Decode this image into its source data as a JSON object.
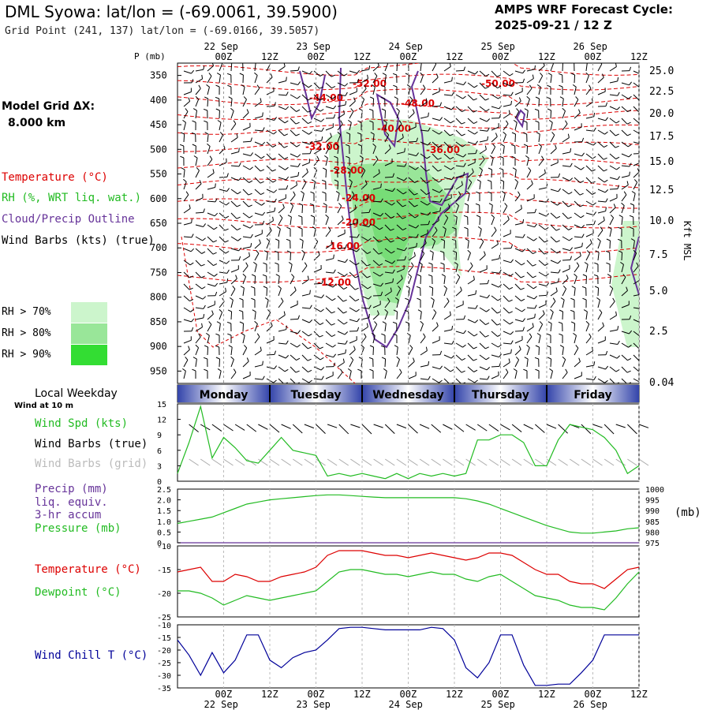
{
  "header": {
    "title": "DML Syowa:  lat/lon = (-69.0061, 39.5900)",
    "grid_point": "Grid Point (241, 137) lat/lon = (-69.0166, 39.5057)",
    "cycle_line1": "AMPS WRF Forecast Cycle:",
    "cycle_line2": "2025-09-21 / 12  Z",
    "model_grid_line1": "Model Grid ΔX:",
    "model_grid_line2": "8.000 km"
  },
  "legend": {
    "temperature": "Temperature (°C)",
    "rh": "RH (%, WRT liq. wat.)",
    "cloud": "Cloud/Precip Outline",
    "wind_barbs": "Wind Barbs (kts) (true)",
    "rh70": "RH > 70%",
    "rh80": "RH > 80%",
    "rh90": "RH > 90%",
    "colors": {
      "rh70": "#ccf5cc",
      "rh80": "#99e699",
      "rh90": "#33dd33",
      "temp": "#dd0000",
      "cloud": "#663399"
    }
  },
  "axes": {
    "time_ticks": [
      "00Z",
      "12Z",
      "00Z",
      "12Z",
      "00Z",
      "12Z",
      "00Z",
      "12Z",
      "00Z",
      "12Z"
    ],
    "date_labels": [
      "22 Sep",
      "23 Sep",
      "24 Sep",
      "25 Sep",
      "26 Sep"
    ],
    "pressure_title": "P (mb)",
    "pressure_ticks": [
      350,
      400,
      450,
      500,
      550,
      600,
      650,
      700,
      750,
      800,
      850,
      900,
      950
    ],
    "kft_ticks": [
      "25.0",
      "22.5",
      "20.0",
      "17.5",
      "15.0",
      "12.5",
      "10.0",
      "7.5",
      "5.0",
      "2.5",
      "0.04"
    ],
    "kft_title": "Kft MSL"
  },
  "weekday_bar": {
    "title": "Local Weekday",
    "subtitle": "Wind at 10 m",
    "days": [
      "Monday",
      "Tuesday",
      "Wednesday",
      "Thursday",
      "Friday"
    ]
  },
  "chart_data": [
    {
      "type": "heatmap",
      "title": "",
      "x_time_labels": [
        "22 Sep 00Z",
        "22 Sep 12Z",
        "23 Sep 00Z",
        "23 Sep 12Z",
        "24 Sep 00Z",
        "24 Sep 12Z",
        "25 Sep 00Z",
        "25 Sep 12Z",
        "26 Sep 00Z",
        "26 Sep 12Z"
      ],
      "ylabel": "P (mb)",
      "ylim": [
        975,
        325
      ],
      "temperature_contour_labels": [
        "-52.00",
        "-50.00",
        "-48.00",
        "-44.00",
        "-40.00",
        "-36.00",
        "-32.00",
        "-28.00",
        "-24.00",
        "-20.00",
        "-16.00",
        "-12.00"
      ]
    },
    {
      "type": "line",
      "panel": "wind",
      "labels": {
        "speed": "Wind Spd (kts)",
        "barbs_true": "Wind Barbs (true)",
        "barbs_grid": "Wind Barbs (grid)"
      },
      "yticks": [
        "15",
        "12",
        "9",
        "6",
        "3",
        "0"
      ],
      "ylim": [
        0,
        15
      ],
      "x_hours": [
        -12,
        -9,
        -6,
        -3,
        0,
        3,
        6,
        9,
        12,
        15,
        18,
        21,
        24,
        27,
        30,
        33,
        36,
        39,
        42,
        45,
        48,
        51,
        54,
        57,
        60,
        63,
        66,
        69,
        72,
        75,
        78,
        81,
        84,
        87,
        90,
        93,
        96,
        99,
        102,
        105,
        108
      ],
      "series": [
        {
          "name": "Wind Spd (kts)",
          "color": "#22bb22",
          "values": [
            1.5,
            7.5,
            14.5,
            4.5,
            8.5,
            6.5,
            4,
            3.5,
            6,
            8.5,
            6,
            5.5,
            5,
            1,
            1.5,
            1,
            1.5,
            1,
            0.5,
            1.5,
            0.5,
            1.5,
            1,
            1.5,
            1,
            1.5,
            8,
            8,
            9,
            9,
            7.5,
            3,
            3,
            8,
            11,
            10.5,
            10,
            8.5,
            6,
            1.5,
            3
          ]
        }
      ]
    },
    {
      "type": "line",
      "panel": "precip-pressure",
      "labels": {
        "precip": "Precip (mm)",
        "precip2": "liq. equiv.",
        "precip3": "3-hr accum",
        "pressure": "Pressure (mb)"
      },
      "yticks_left": [
        "2.5",
        "2.0",
        "1.5",
        "1.0",
        "0.5",
        "0"
      ],
      "yticks_right": [
        "1000",
        "995",
        "990",
        "985",
        "980",
        "975"
      ],
      "units_right": "(mb)",
      "ylim_left": [
        0,
        2.5
      ],
      "ylim_right": [
        975,
        1000
      ],
      "x_hours": [
        -12,
        -9,
        -6,
        -3,
        0,
        3,
        6,
        9,
        12,
        15,
        18,
        21,
        24,
        27,
        30,
        33,
        36,
        39,
        42,
        45,
        48,
        51,
        54,
        57,
        60,
        63,
        66,
        69,
        72,
        75,
        78,
        81,
        84,
        87,
        90,
        93,
        96,
        99,
        102,
        105,
        108
      ],
      "series": [
        {
          "name": "Pressure (mb)",
          "color": "#22bb22",
          "values": [
            984,
            985,
            986,
            987,
            989,
            991,
            993,
            994,
            995,
            995.5,
            996,
            996.5,
            997,
            997.3,
            997.3,
            997,
            996.6,
            996.3,
            996,
            996,
            996,
            996,
            996,
            996,
            996,
            995.5,
            994.5,
            993,
            991,
            989,
            987,
            985,
            983,
            981.5,
            980,
            979.5,
            979.5,
            980,
            980.5,
            981.5,
            982
          ]
        },
        {
          "name": "Precip (mm)",
          "color": "#663399",
          "values": [
            0,
            0,
            0,
            0,
            0,
            0,
            0,
            0,
            0,
            0,
            0,
            0,
            0,
            0,
            0,
            0,
            0,
            0,
            0,
            0,
            0,
            0,
            0,
            0,
            0,
            0,
            0,
            0,
            0,
            0,
            0,
            0,
            0,
            0,
            0,
            0,
            0,
            0,
            0,
            0,
            0
          ]
        }
      ]
    },
    {
      "type": "line",
      "panel": "temperature",
      "labels": {
        "temp": "Temperature (°C)",
        "dew": "Dewpoint (°C)"
      },
      "yticks": [
        "-10",
        "-15",
        "-20",
        "-25"
      ],
      "ylim": [
        -25,
        -10
      ],
      "x_hours": [
        -12,
        -9,
        -6,
        -3,
        0,
        3,
        6,
        9,
        12,
        15,
        18,
        21,
        24,
        27,
        30,
        33,
        36,
        39,
        42,
        45,
        48,
        51,
        54,
        57,
        60,
        63,
        66,
        69,
        72,
        75,
        78,
        81,
        84,
        87,
        90,
        93,
        96,
        99,
        102,
        105,
        108
      ],
      "series": [
        {
          "name": "Temperature (°C)",
          "color": "#dd0000",
          "values": [
            -15.5,
            -15,
            -14.5,
            -17.5,
            -17.5,
            -16,
            -16.5,
            -17.5,
            -17.5,
            -16.5,
            -16,
            -15.5,
            -14.5,
            -12,
            -11,
            -11,
            -11,
            -11.5,
            -12,
            -12,
            -12.5,
            -12,
            -11.5,
            -12,
            -12.5,
            -13,
            -12.5,
            -11.5,
            -11.5,
            -12,
            -13.5,
            -15,
            -16,
            -16,
            -17.5,
            -18,
            -18,
            -19,
            -17,
            -15,
            -14.5
          ]
        },
        {
          "name": "Dewpoint (°C)",
          "color": "#22bb22",
          "values": [
            -19.5,
            -19.5,
            -20,
            -21,
            -22.5,
            -21.5,
            -20.5,
            -21,
            -21.5,
            -21,
            -20.5,
            -20,
            -19.5,
            -17.5,
            -15.5,
            -15,
            -15,
            -15.5,
            -16,
            -16,
            -16.5,
            -16,
            -15.5,
            -16,
            -16,
            -17,
            -17.5,
            -16.5,
            -16,
            -17.5,
            -19,
            -20.5,
            -21,
            -21.5,
            -22.5,
            -23,
            -23,
            -23.5,
            -21,
            -18,
            -15.5
          ]
        }
      ]
    },
    {
      "type": "line",
      "panel": "windchill",
      "labels": {
        "wc": "Wind Chill T (°C)"
      },
      "yticks": [
        "-10",
        "-15",
        "-20",
        "-25",
        "-30",
        "-35"
      ],
      "ylim": [
        -35,
        -10
      ],
      "x_hours": [
        -12,
        -9,
        -6,
        -3,
        0,
        3,
        6,
        9,
        12,
        15,
        18,
        21,
        24,
        27,
        30,
        33,
        36,
        39,
        42,
        45,
        48,
        51,
        54,
        57,
        60,
        63,
        66,
        69,
        72,
        75,
        78,
        81,
        84,
        87,
        90,
        93,
        96,
        99,
        102,
        105,
        108
      ],
      "series": [
        {
          "name": "Wind Chill T (°C)",
          "color": "#000099",
          "values": [
            -16,
            -22,
            -30,
            -21,
            -29,
            -24,
            -14,
            -14,
            -24,
            -27,
            -23,
            -21,
            -20,
            -16,
            -11.5,
            -11,
            -11,
            -11.5,
            -12,
            -12,
            -12,
            -12,
            -11,
            -11.5,
            -16,
            -27,
            -31,
            -25,
            -14,
            -14,
            -26,
            -34,
            -34,
            -33.5,
            -33.5,
            -29,
            -24,
            -14,
            -14,
            -14,
            -14
          ]
        }
      ]
    }
  ]
}
